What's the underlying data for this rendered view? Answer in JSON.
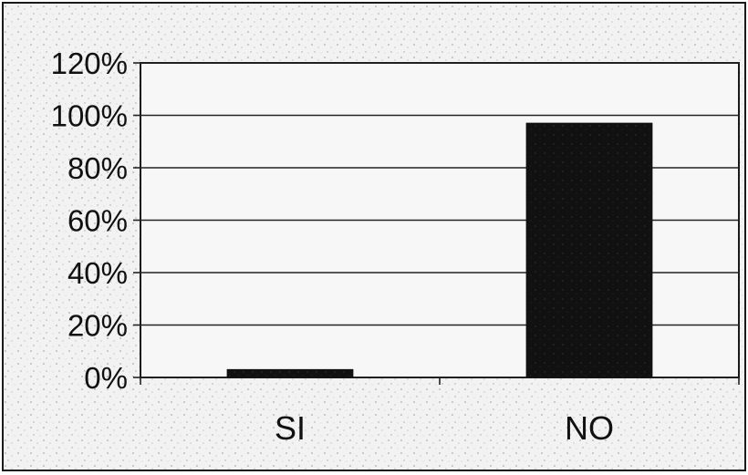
{
  "chart_data": {
    "type": "bar",
    "categories": [
      "SI",
      "NO"
    ],
    "values": [
      3,
      97
    ],
    "ylim": [
      0,
      120
    ],
    "yticks": [
      0,
      20,
      40,
      60,
      80,
      100,
      120
    ],
    "y_tick_suffix": "%",
    "grid": true,
    "legend": "none",
    "bar_color": "#111111",
    "background_color": "#f4f4f4",
    "grid_color": "#222222"
  }
}
